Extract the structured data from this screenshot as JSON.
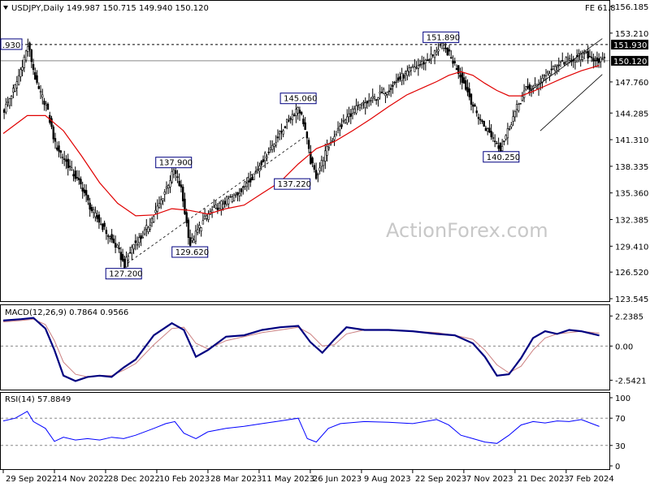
{
  "header": {
    "symbol_line": "USDJPY,Daily  149.987 150.715 149.940 150.120",
    "corner_label": "FE 61.8"
  },
  "watermark": "ActionForex.com",
  "colors": {
    "candle": "#000000",
    "ma": "#e00000",
    "macd_main": "#000080",
    "macd_signal": "#cc8080",
    "rsi": "#0000ff",
    "label_border": "#000080",
    "grid": "#000000"
  },
  "chart_data": [
    {
      "type": "line",
      "name": "price",
      "ylim": [
        123.545,
        156.185
      ],
      "ytick_labels": [
        "156.185",
        "153.210",
        "147.760",
        "144.285",
        "141.310",
        "138.335",
        "135.360",
        "132.385",
        "129.410",
        "126.520",
        "123.545"
      ],
      "ytick_values": [
        156.185,
        153.21,
        147.76,
        144.285,
        141.31,
        138.335,
        135.36,
        132.385,
        129.41,
        126.52,
        123.545
      ],
      "right_markers": [
        {
          "label": "151.930",
          "value": 151.93,
          "style": "dark"
        },
        {
          "label": "150.120",
          "value": 150.12,
          "style": "dark"
        }
      ],
      "reference_lines": [
        {
          "value": 151.93,
          "style": "dotted",
          "left_label": ".930"
        },
        {
          "value": 150.12,
          "style": "solid"
        }
      ],
      "annotations": [
        {
          "label": "151.890",
          "x": 0.727,
          "value": 151.89,
          "pos": "above"
        },
        {
          "label": "145.060",
          "x": 0.49,
          "value": 145.06,
          "pos": "above"
        },
        {
          "label": "137.900",
          "x": 0.283,
          "value": 137.9,
          "pos": "above"
        },
        {
          "label": "137.220",
          "x": 0.48,
          "value": 137.22,
          "pos": "below"
        },
        {
          "label": "140.250",
          "x": 0.827,
          "value": 140.25,
          "pos": "below"
        },
        {
          "label": "129.620",
          "x": 0.31,
          "value": 129.62,
          "pos": "below"
        },
        {
          "label": "127.200",
          "x": 0.2,
          "value": 127.2,
          "pos": "below"
        }
      ],
      "close_path": [
        [
          0.0,
          144.6
        ],
        [
          0.02,
          147.5
        ],
        [
          0.04,
          151.9
        ],
        [
          0.055,
          147.2
        ],
        [
          0.07,
          145.2
        ],
        [
          0.085,
          140.8
        ],
        [
          0.1,
          139.2
        ],
        [
          0.115,
          137.5
        ],
        [
          0.13,
          136.0
        ],
        [
          0.145,
          133.5
        ],
        [
          0.16,
          132.0
        ],
        [
          0.175,
          130.5
        ],
        [
          0.19,
          129.0
        ],
        [
          0.2,
          127.2
        ],
        [
          0.215,
          129.6
        ],
        [
          0.23,
          130.5
        ],
        [
          0.245,
          132.3
        ],
        [
          0.26,
          134.3
        ],
        [
          0.275,
          136.7
        ],
        [
          0.283,
          137.9
        ],
        [
          0.295,
          135.7
        ],
        [
          0.305,
          131.5
        ],
        [
          0.31,
          129.6
        ],
        [
          0.325,
          131.5
        ],
        [
          0.34,
          133.0
        ],
        [
          0.355,
          133.8
        ],
        [
          0.37,
          134.5
        ],
        [
          0.385,
          135.0
        ],
        [
          0.4,
          136.2
        ],
        [
          0.415,
          137.3
        ],
        [
          0.43,
          139.0
        ],
        [
          0.445,
          140.5
        ],
        [
          0.46,
          142.0
        ],
        [
          0.475,
          143.6
        ],
        [
          0.49,
          145.06
        ],
        [
          0.5,
          143.0
        ],
        [
          0.51,
          139.0
        ],
        [
          0.52,
          137.22
        ],
        [
          0.535,
          139.8
        ],
        [
          0.55,
          141.8
        ],
        [
          0.565,
          143.2
        ],
        [
          0.58,
          144.5
        ],
        [
          0.6,
          145.3
        ],
        [
          0.62,
          146.0
        ],
        [
          0.64,
          147.0
        ],
        [
          0.66,
          148.2
        ],
        [
          0.68,
          149.2
        ],
        [
          0.7,
          150.0
        ],
        [
          0.715,
          150.8
        ],
        [
          0.727,
          151.89
        ],
        [
          0.74,
          151.0
        ],
        [
          0.755,
          149.2
        ],
        [
          0.77,
          147.0
        ],
        [
          0.785,
          144.5
        ],
        [
          0.8,
          142.8
        ],
        [
          0.815,
          141.5
        ],
        [
          0.827,
          140.25
        ],
        [
          0.84,
          142.5
        ],
        [
          0.855,
          145.0
        ],
        [
          0.87,
          147.0
        ],
        [
          0.885,
          147.2
        ],
        [
          0.9,
          148.5
        ],
        [
          0.915,
          149.2
        ],
        [
          0.93,
          150.0
        ],
        [
          0.95,
          150.4
        ],
        [
          0.97,
          150.8
        ],
        [
          0.99,
          150.12
        ]
      ],
      "ma_path": [
        [
          0.0,
          142.0
        ],
        [
          0.04,
          144.0
        ],
        [
          0.07,
          144.0
        ],
        [
          0.1,
          142.3
        ],
        [
          0.13,
          139.5
        ],
        [
          0.16,
          136.5
        ],
        [
          0.19,
          134.2
        ],
        [
          0.22,
          132.8
        ],
        [
          0.25,
          132.9
        ],
        [
          0.28,
          133.6
        ],
        [
          0.31,
          133.4
        ],
        [
          0.34,
          133.0
        ],
        [
          0.37,
          133.6
        ],
        [
          0.4,
          134.0
        ],
        [
          0.43,
          135.3
        ],
        [
          0.46,
          136.6
        ],
        [
          0.49,
          138.6
        ],
        [
          0.52,
          140.3
        ],
        [
          0.55,
          141.1
        ],
        [
          0.58,
          142.3
        ],
        [
          0.61,
          143.6
        ],
        [
          0.64,
          145.0
        ],
        [
          0.67,
          146.3
        ],
        [
          0.7,
          147.2
        ],
        [
          0.72,
          147.8
        ],
        [
          0.74,
          148.5
        ],
        [
          0.76,
          148.9
        ],
        [
          0.78,
          148.5
        ],
        [
          0.8,
          147.6
        ],
        [
          0.82,
          146.8
        ],
        [
          0.84,
          146.2
        ],
        [
          0.86,
          146.2
        ],
        [
          0.88,
          146.7
        ],
        [
          0.9,
          147.3
        ],
        [
          0.93,
          148.2
        ],
        [
          0.96,
          149.0
        ],
        [
          0.99,
          149.6
        ]
      ],
      "trend_lines": [
        {
          "from": [
            0.2,
            127.2
          ],
          "to": [
            0.5,
            141.6
          ],
          "style": "dashed"
        },
        {
          "from": [
            0.872,
            146.6
          ],
          "to": [
            0.995,
            152.6
          ],
          "style": "solid"
        },
        {
          "from": [
            0.892,
            142.3
          ],
          "to": [
            0.995,
            148.6
          ],
          "style": "solid"
        }
      ]
    },
    {
      "type": "line",
      "name": "MACD(12,26,9) 0.7864 0.9566",
      "ylim": [
        -3.0,
        2.8
      ],
      "ytick_labels": [
        "2.2385",
        "0.00",
        "-2.5421"
      ],
      "ytick_values": [
        2.2385,
        0.0,
        -2.5421
      ],
      "reference_line": 0.0,
      "macd": [
        [
          0.0,
          1.9
        ],
        [
          0.03,
          2.0
        ],
        [
          0.05,
          2.1
        ],
        [
          0.07,
          1.3
        ],
        [
          0.085,
          -0.3
        ],
        [
          0.1,
          -2.2
        ],
        [
          0.12,
          -2.6
        ],
        [
          0.14,
          -2.3
        ],
        [
          0.16,
          -2.2
        ],
        [
          0.18,
          -2.3
        ],
        [
          0.2,
          -1.6
        ],
        [
          0.22,
          -1.0
        ],
        [
          0.25,
          0.8
        ],
        [
          0.28,
          1.7
        ],
        [
          0.3,
          1.2
        ],
        [
          0.32,
          -0.8
        ],
        [
          0.34,
          -0.3
        ],
        [
          0.37,
          0.7
        ],
        [
          0.4,
          0.8
        ],
        [
          0.43,
          1.2
        ],
        [
          0.46,
          1.4
        ],
        [
          0.49,
          1.5
        ],
        [
          0.51,
          0.3
        ],
        [
          0.53,
          -0.5
        ],
        [
          0.55,
          0.5
        ],
        [
          0.57,
          1.4
        ],
        [
          0.6,
          1.2
        ],
        [
          0.64,
          1.2
        ],
        [
          0.68,
          1.1
        ],
        [
          0.72,
          0.9
        ],
        [
          0.75,
          0.8
        ],
        [
          0.78,
          0.2
        ],
        [
          0.8,
          -0.8
        ],
        [
          0.82,
          -2.2
        ],
        [
          0.84,
          -2.1
        ],
        [
          0.86,
          -0.9
        ],
        [
          0.88,
          0.6
        ],
        [
          0.9,
          1.1
        ],
        [
          0.92,
          0.9
        ],
        [
          0.94,
          1.2
        ],
        [
          0.96,
          1.1
        ],
        [
          0.99,
          0.79
        ]
      ],
      "signal": [
        [
          0.0,
          1.8
        ],
        [
          0.03,
          1.9
        ],
        [
          0.05,
          2.0
        ],
        [
          0.07,
          1.6
        ],
        [
          0.085,
          0.4
        ],
        [
          0.1,
          -1.2
        ],
        [
          0.12,
          -2.1
        ],
        [
          0.14,
          -2.3
        ],
        [
          0.16,
          -2.2
        ],
        [
          0.18,
          -2.2
        ],
        [
          0.2,
          -1.8
        ],
        [
          0.22,
          -1.3
        ],
        [
          0.25,
          0.1
        ],
        [
          0.28,
          1.3
        ],
        [
          0.3,
          1.4
        ],
        [
          0.32,
          0.2
        ],
        [
          0.34,
          -0.2
        ],
        [
          0.37,
          0.4
        ],
        [
          0.4,
          0.7
        ],
        [
          0.43,
          1.0
        ],
        [
          0.46,
          1.2
        ],
        [
          0.49,
          1.4
        ],
        [
          0.51,
          0.9
        ],
        [
          0.53,
          0.0
        ],
        [
          0.55,
          0.1
        ],
        [
          0.57,
          0.9
        ],
        [
          0.6,
          1.2
        ],
        [
          0.64,
          1.2
        ],
        [
          0.68,
          1.1
        ],
        [
          0.72,
          1.0
        ],
        [
          0.75,
          0.8
        ],
        [
          0.78,
          0.5
        ],
        [
          0.8,
          -0.3
        ],
        [
          0.82,
          -1.4
        ],
        [
          0.84,
          -2.0
        ],
        [
          0.86,
          -1.5
        ],
        [
          0.88,
          -0.3
        ],
        [
          0.9,
          0.6
        ],
        [
          0.92,
          0.9
        ],
        [
          0.94,
          1.0
        ],
        [
          0.96,
          1.1
        ],
        [
          0.99,
          0.96
        ]
      ]
    },
    {
      "type": "line",
      "name": "RSI(14) 57.8849",
      "ylim": [
        0,
        100
      ],
      "ytick_labels": [
        "100",
        "70",
        "30",
        "0"
      ],
      "ytick_values": [
        100,
        70,
        30,
        0
      ],
      "reference_lines": [
        70,
        30
      ],
      "rsi": [
        [
          0.0,
          66
        ],
        [
          0.02,
          70
        ],
        [
          0.04,
          80
        ],
        [
          0.05,
          65
        ],
        [
          0.07,
          55
        ],
        [
          0.085,
          36
        ],
        [
          0.1,
          42
        ],
        [
          0.12,
          38
        ],
        [
          0.14,
          40
        ],
        [
          0.16,
          38
        ],
        [
          0.18,
          42
        ],
        [
          0.2,
          40
        ],
        [
          0.22,
          45
        ],
        [
          0.25,
          55
        ],
        [
          0.27,
          62
        ],
        [
          0.285,
          65
        ],
        [
          0.3,
          48
        ],
        [
          0.32,
          40
        ],
        [
          0.34,
          50
        ],
        [
          0.37,
          55
        ],
        [
          0.4,
          58
        ],
        [
          0.43,
          62
        ],
        [
          0.46,
          66
        ],
        [
          0.49,
          70
        ],
        [
          0.505,
          40
        ],
        [
          0.52,
          35
        ],
        [
          0.54,
          55
        ],
        [
          0.56,
          62
        ],
        [
          0.6,
          65
        ],
        [
          0.64,
          64
        ],
        [
          0.68,
          62
        ],
        [
          0.72,
          68
        ],
        [
          0.74,
          60
        ],
        [
          0.76,
          45
        ],
        [
          0.78,
          40
        ],
        [
          0.8,
          35
        ],
        [
          0.82,
          33
        ],
        [
          0.84,
          45
        ],
        [
          0.86,
          60
        ],
        [
          0.88,
          65
        ],
        [
          0.9,
          63
        ],
        [
          0.92,
          66
        ],
        [
          0.94,
          65
        ],
        [
          0.96,
          68
        ],
        [
          0.99,
          57.88
        ]
      ]
    }
  ],
  "x_axis": {
    "labels": [
      "29 Sep 2022",
      "14 Nov 2022",
      "28 Dec 2022",
      "10 Feb 2023",
      "28 Mar 2023",
      "11 May 2023",
      "26 Jun 2023",
      "9 Aug 2023",
      "22 Sep 2023",
      "7 Nov 2023",
      "21 Dec 2023",
      "7 Feb 2024"
    ],
    "positions": [
      0.0,
      0.085,
      0.17,
      0.255,
      0.34,
      0.425,
      0.51,
      0.595,
      0.68,
      0.765,
      0.85,
      0.935
    ]
  }
}
